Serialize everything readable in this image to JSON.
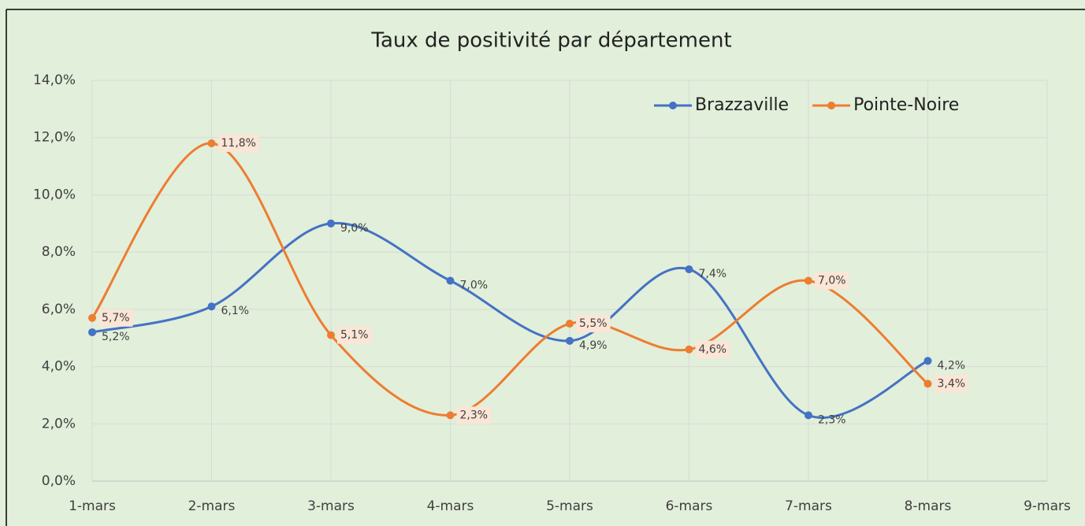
{
  "chart_data": {
    "type": "line",
    "title": "Taux de positivité par département",
    "categories": [
      "1-mars",
      "2-mars",
      "3-mars",
      "4-mars",
      "5-mars",
      "6-mars",
      "7-mars",
      "8-mars",
      "9-mars"
    ],
    "series": [
      {
        "name": "Brazzaville",
        "color": "#4472c4",
        "values": [
          5.2,
          6.1,
          9.0,
          7.0,
          4.9,
          7.4,
          2.3,
          4.2,
          null
        ],
        "value_labels": [
          "5,2%",
          "6,1%",
          "9,0%",
          "7,0%",
          "4,9%",
          "7,4%",
          "2,3%",
          "4,2%",
          null
        ]
      },
      {
        "name": "Pointe-Noire",
        "color": "#ed7d31",
        "values": [
          5.7,
          11.8,
          5.1,
          2.3,
          5.5,
          4.6,
          7.0,
          3.4,
          null
        ],
        "value_labels": [
          "5,7%",
          "11,8%",
          "5,1%",
          "2,3%",
          "5,5%",
          "4,6%",
          "7,0%",
          "3,4%",
          null
        ]
      }
    ],
    "ylim": [
      0,
      14
    ],
    "yticks": [
      {
        "value": 0,
        "label": "0,0%"
      },
      {
        "value": 2,
        "label": "2,0%"
      },
      {
        "value": 4,
        "label": "4,0%"
      },
      {
        "value": 6,
        "label": "6,0%"
      },
      {
        "value": 8,
        "label": "8,0%"
      },
      {
        "value": 10,
        "label": "10,0%"
      },
      {
        "value": 12,
        "label": "12,0%"
      },
      {
        "value": 14,
        "label": "14,0%"
      }
    ],
    "grid": true,
    "smooth": true,
    "legend": "top-right"
  }
}
